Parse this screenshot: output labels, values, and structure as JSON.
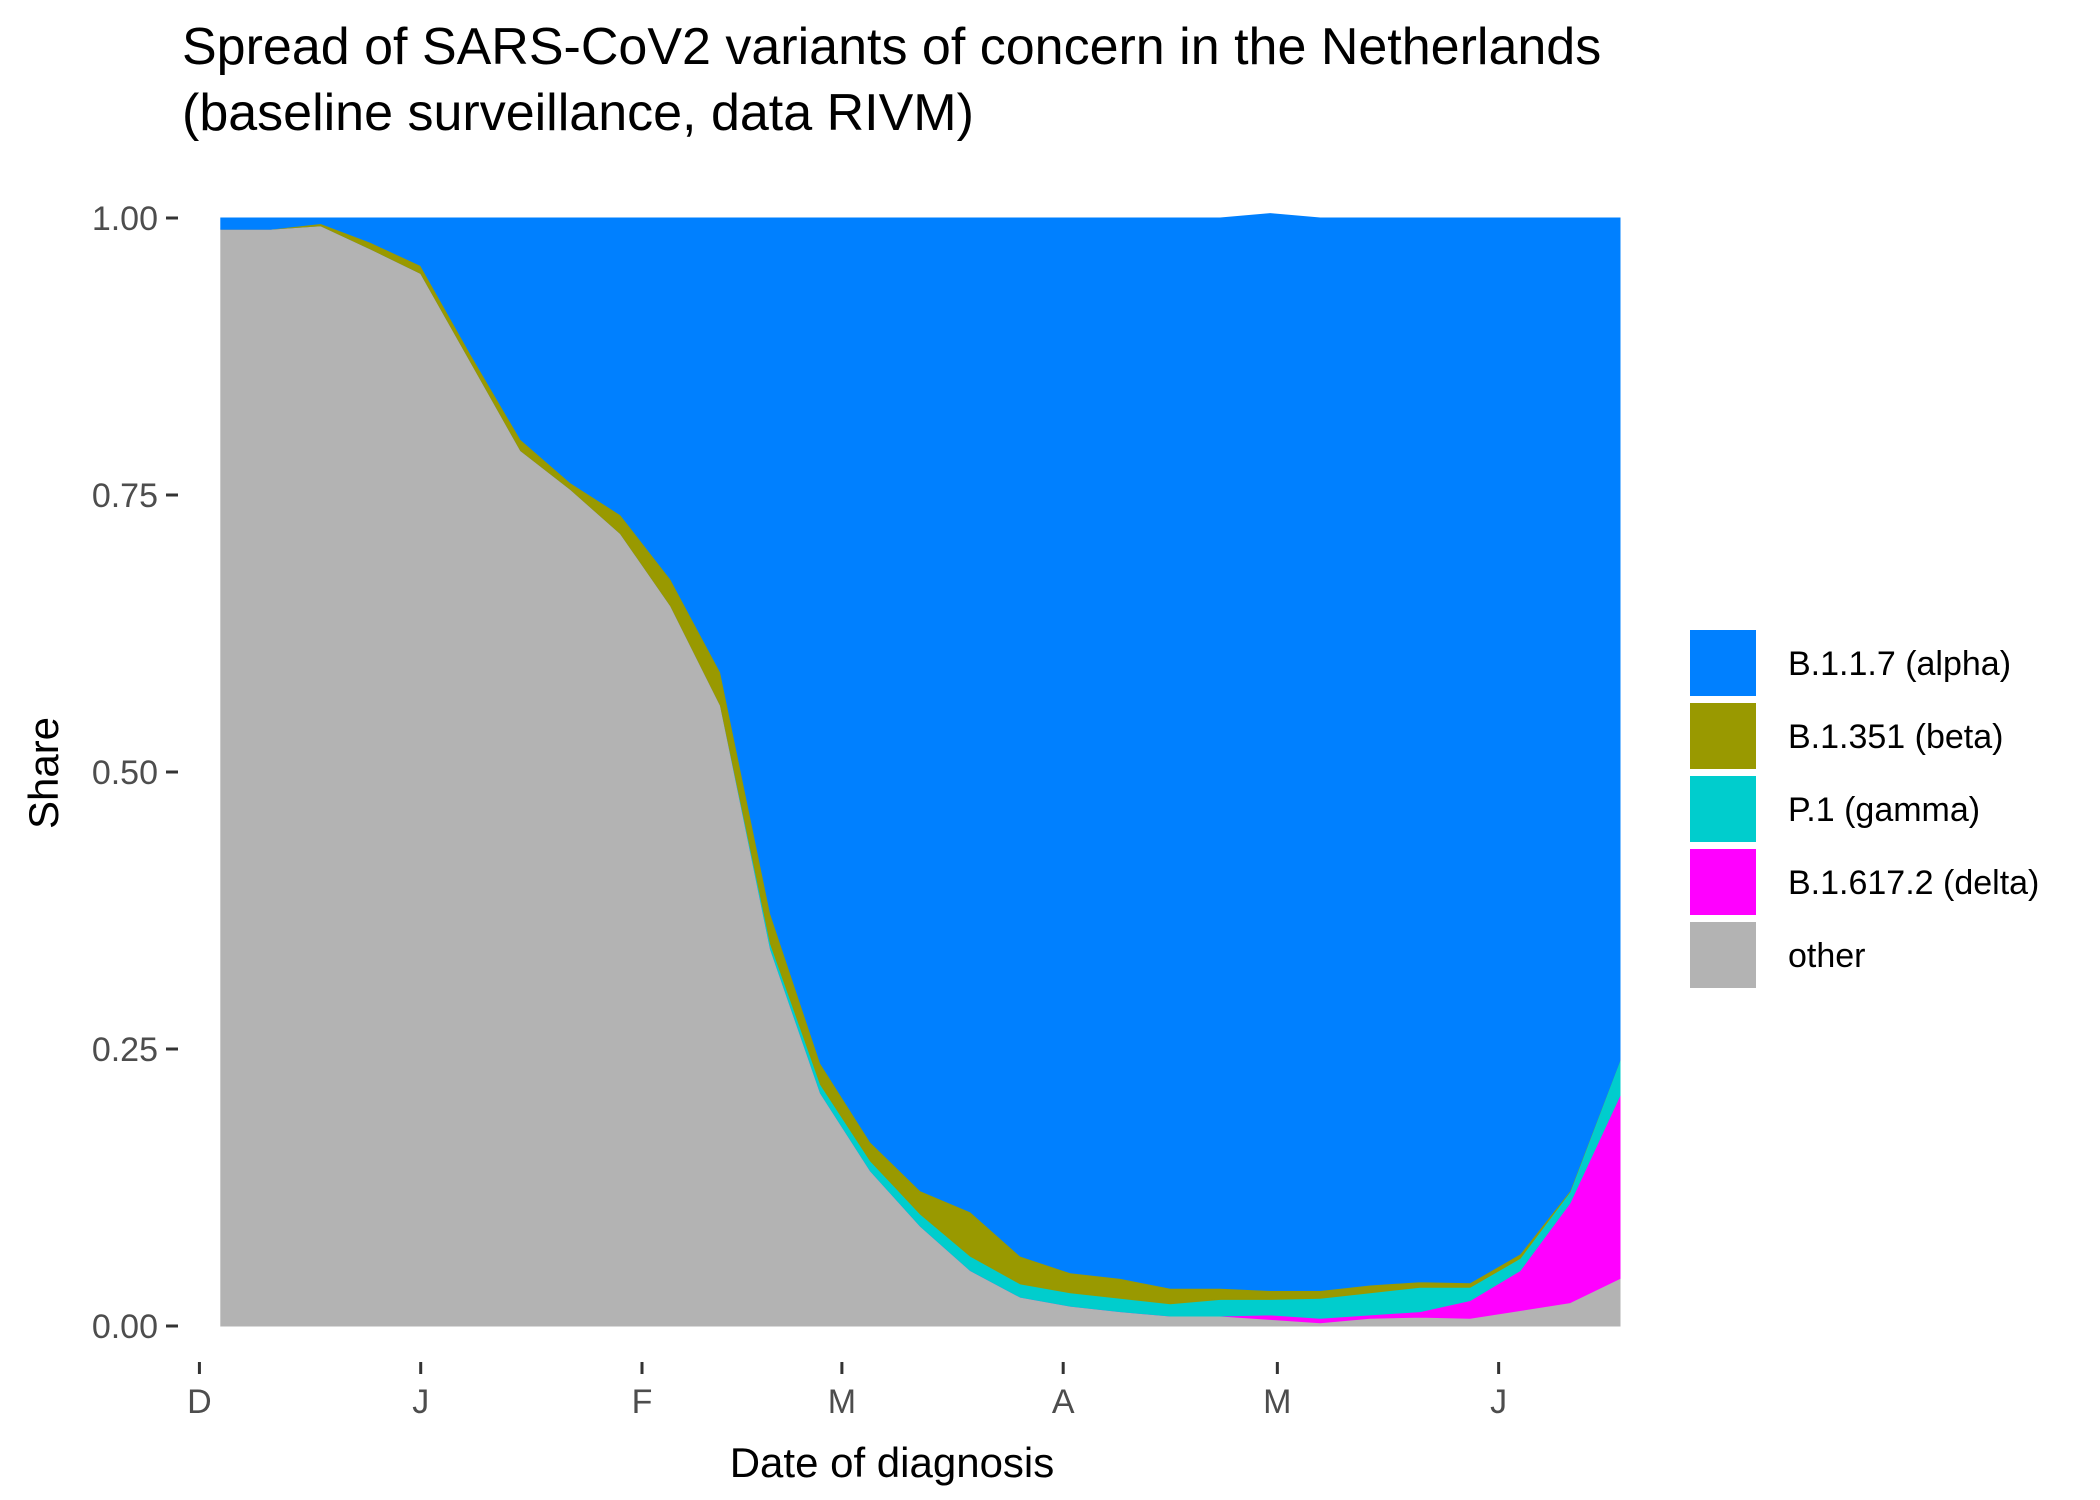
{
  "chart_data": {
    "type": "area",
    "title": "Spread of SARS-CoV2 variants of concern in the Netherlands",
    "subtitle": "(baseline surveillance, data RIVM)",
    "xlabel": "Date of diagnosis",
    "ylabel": "Share",
    "x_tick_labels": [
      "D",
      "J",
      "F",
      "M",
      "A",
      "M",
      "J"
    ],
    "x_tick_dates": [
      "2020-12-01",
      "2021-01-01",
      "2021-02-01",
      "2021-03-01",
      "2021-04-01",
      "2021-05-01",
      "2021-06-01"
    ],
    "y_ticks": [
      0,
      0.25,
      0.5,
      0.75,
      1
    ],
    "y_tick_labels": [
      "0.00",
      "0.25",
      "0.50",
      "0.75",
      "1.00"
    ],
    "ylim": [
      0,
      1
    ],
    "xlim": [
      "2020-11-28",
      "2021-06-18"
    ],
    "grid": false,
    "legend_position": "right",
    "stack_order_bottom_to_top": [
      "other",
      "B.1.617.2 (delta)",
      "P.1 (gamma)",
      "B.1.351 (beta)",
      "B.1.1.7 (alpha)"
    ],
    "dates": [
      "2020-12-04",
      "2020-12-11",
      "2020-12-18",
      "2020-12-25",
      "2021-01-01",
      "2021-01-08",
      "2021-01-15",
      "2021-01-22",
      "2021-01-29",
      "2021-02-05",
      "2021-02-12",
      "2021-02-19",
      "2021-02-26",
      "2021-03-05",
      "2021-03-12",
      "2021-03-19",
      "2021-03-26",
      "2021-04-02",
      "2021-04-09",
      "2021-04-16",
      "2021-04-23",
      "2021-04-30",
      "2021-05-07",
      "2021-05-14",
      "2021-05-21",
      "2021-05-28",
      "2021-06-04",
      "2021-06-11",
      "2021-06-18"
    ],
    "series": [
      {
        "name": "other",
        "color": "#B3B3B3",
        "values": [
          0.99,
          0.99,
          0.993,
          0.972,
          0.95,
          0.87,
          0.79,
          0.755,
          0.715,
          0.65,
          0.56,
          0.34,
          0.21,
          0.14,
          0.09,
          0.05,
          0.026,
          0.018,
          0.013,
          0.009,
          0.009,
          0.006,
          0.003,
          0.007,
          0.008,
          0.007,
          0.014,
          0.021,
          0.043
        ]
      },
      {
        "name": "B.1.617.2 (delta)",
        "color": "#FF00FF",
        "values": [
          0,
          0,
          0,
          0,
          0,
          0,
          0,
          0,
          0,
          0,
          0,
          0,
          0,
          0,
          0,
          0,
          0,
          0,
          0,
          0,
          0,
          0.004,
          0.004,
          0.003,
          0.005,
          0.016,
          0.036,
          0.09,
          0.165
        ]
      },
      {
        "name": "P.1 (gamma)",
        "color": "#00CDCD",
        "values": [
          0,
          0,
          0,
          0,
          0,
          0,
          0,
          0,
          0,
          0,
          0,
          0.005,
          0.008,
          0.009,
          0.011,
          0.013,
          0.012,
          0.012,
          0.012,
          0.011,
          0.015,
          0.014,
          0.018,
          0.02,
          0.022,
          0.012,
          0.011,
          0.01,
          0.032
        ]
      },
      {
        "name": "B.1.351 (beta)",
        "color": "#999900",
        "values": [
          0,
          0,
          0.002,
          0.006,
          0.007,
          0.007,
          0.01,
          0.006,
          0.017,
          0.024,
          0.03,
          0.027,
          0.019,
          0.017,
          0.021,
          0.04,
          0.025,
          0.018,
          0.018,
          0.014,
          0.01,
          0.008,
          0.007,
          0.007,
          0.005,
          0.004,
          0.004,
          0.001,
          0
        ]
      },
      {
        "name": "B.1.1.7 (alpha)",
        "color": "#0080FF",
        "values": [
          0.01,
          0.01,
          0.005,
          0.022,
          0.043,
          0.123,
          0.2,
          0.239,
          0.268,
          0.326,
          0.41,
          0.628,
          0.763,
          0.834,
          0.878,
          0.897,
          0.937,
          0.952,
          0.957,
          0.966,
          0.966,
          0.972,
          0.968,
          0.963,
          0.96,
          0.961,
          0.935,
          0.878,
          0.76
        ]
      }
    ]
  }
}
